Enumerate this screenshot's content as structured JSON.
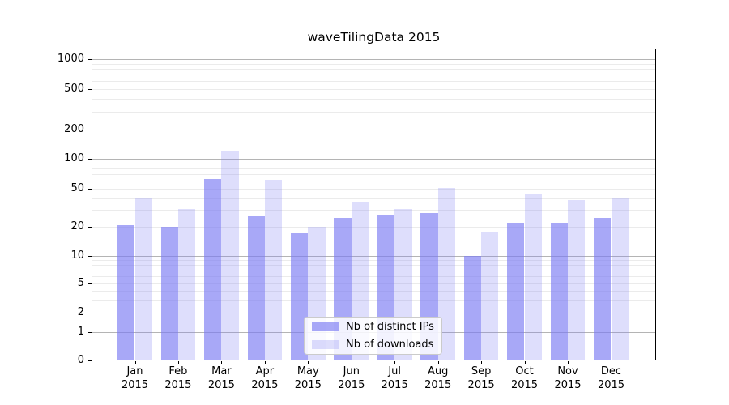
{
  "chart_data": {
    "type": "bar",
    "title": "waveTilingData 2015",
    "categories": [
      "Jan",
      "Feb",
      "Mar",
      "Apr",
      "May",
      "Jun",
      "Jul",
      "Aug",
      "Sep",
      "Oct",
      "Nov",
      "Dec"
    ],
    "year_label": "2015",
    "series": [
      {
        "name": "Nb of distinct IPs",
        "color": "#7a7af2",
        "alpha": 0.65,
        "values": [
          21,
          20,
          63,
          26,
          17,
          25,
          27,
          28,
          10,
          22,
          22,
          25
        ]
      },
      {
        "name": "Nb of downloads",
        "color": "#7a7af2",
        "alpha": 0.25,
        "values": [
          40,
          31,
          120,
          62,
          20,
          37,
          31,
          51,
          18,
          44,
          38,
          40
        ]
      }
    ],
    "y_ticks": [
      0,
      1,
      2,
      5,
      10,
      20,
      50,
      100,
      200,
      500,
      1000
    ],
    "y_scale": "symlog",
    "ylim": [
      0,
      1280
    ],
    "xlabel": "",
    "ylabel": "",
    "grid": true,
    "legend_position": "lower center"
  }
}
